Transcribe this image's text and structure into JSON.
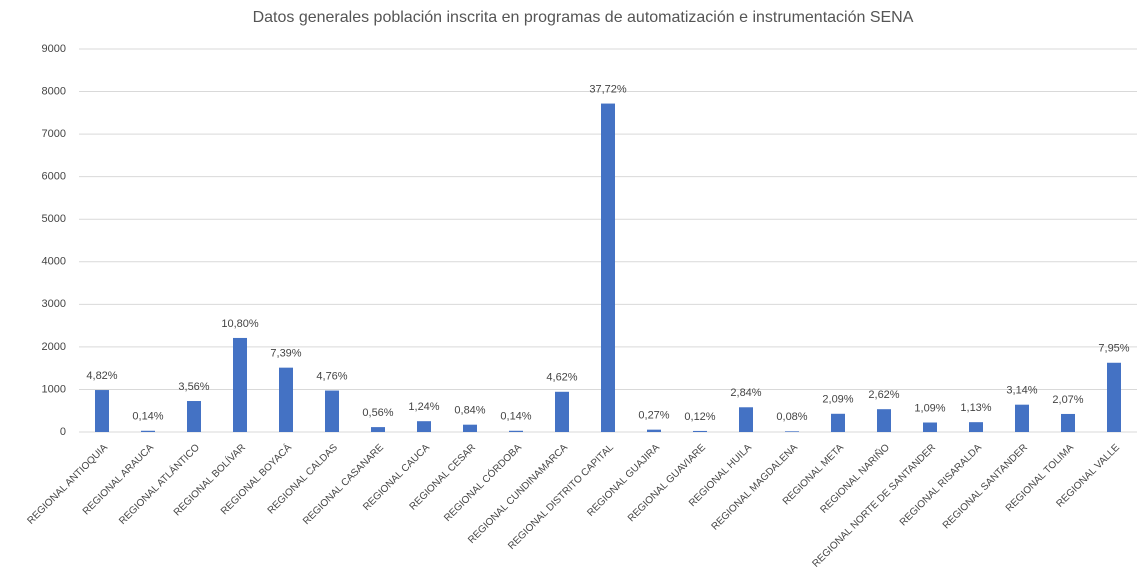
{
  "chart_data": {
    "type": "bar",
    "title": "Datos generales población inscrita en programas de automatización e instrumentación SENA",
    "categories": [
      "REGIONAL ANTIOQUIA",
      "REGIONAL ARAUCA",
      "REGIONAL ATLÁNTICO",
      "REGIONAL BOLÍVAR",
      "REGIONAL BOYACÁ",
      "REGIONAL CALDAS",
      "REGIONAL CASANARE",
      "REGIONAL CAUCA",
      "REGIONAL CESAR",
      "REGIONAL CÓRDOBA",
      "REGIONAL CUNDINAMARCA",
      "REGIONAL DISTRITO CAPITAL",
      "REGIONAL GUAJIRA",
      "REGIONAL GUAVIARE",
      "REGIONAL HUILA",
      "REGIONAL MAGDALENA",
      "REGIONAL META",
      "REGIONAL NARIÑO",
      "REGIONAL NORTE DE SANTANDER",
      "REGIONAL RISARALDA",
      "REGIONAL SANTANDER",
      "REGIONAL TOLIMA",
      "REGIONAL VALLE"
    ],
    "values": [
      986,
      29,
      728,
      2210,
      1512,
      974,
      115,
      254,
      172,
      29,
      945,
      7718,
      55,
      25,
      581,
      16,
      428,
      536,
      223,
      231,
      642,
      424,
      1627
    ],
    "value_labels": [
      "4,82%",
      "0,14%",
      "3,56%",
      "10,80%",
      "7,39%",
      "4,76%",
      "0,56%",
      "1,24%",
      "0,84%",
      "0,14%",
      "4,62%",
      "37,72%",
      "0,27%",
      "0,12%",
      "2,84%",
      "0,08%",
      "2,09%",
      "2,62%",
      "1,09%",
      "1,13%",
      "3,14%",
      "2,07%",
      "7,95%"
    ],
    "color": "#4472c4",
    "ylim": [
      0,
      9000
    ],
    "yticks": [
      0,
      1000,
      2000,
      3000,
      4000,
      5000,
      6000,
      7000,
      8000,
      9000
    ],
    "grid": true
  }
}
